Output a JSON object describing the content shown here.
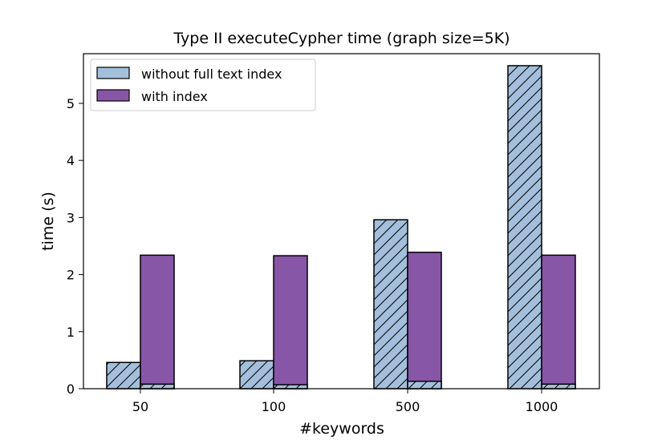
{
  "chart_data": {
    "type": "bar",
    "title": "Type II executeCypher time (graph size=5K)",
    "xlabel": "#keywords",
    "ylabel": "time (s)",
    "categories": [
      "50",
      "100",
      "500",
      "1000"
    ],
    "ylim": [
      0,
      5.87
    ],
    "yticks": [
      0,
      1,
      2,
      3,
      4,
      5
    ],
    "grid": false,
    "legend_position": "top-left",
    "series": [
      {
        "name": "without full text index",
        "values": [
          0.46,
          0.49,
          2.96,
          5.66
        ],
        "color": "#a3bfdb",
        "hatch": "diagonal"
      },
      {
        "name": "with index",
        "values": [
          2.34,
          2.33,
          2.39,
          2.34
        ],
        "color": "#8856a7",
        "hatch": "none"
      }
    ],
    "overlay_values": [
      0.08,
      0.07,
      0.13,
      0.08
    ]
  }
}
